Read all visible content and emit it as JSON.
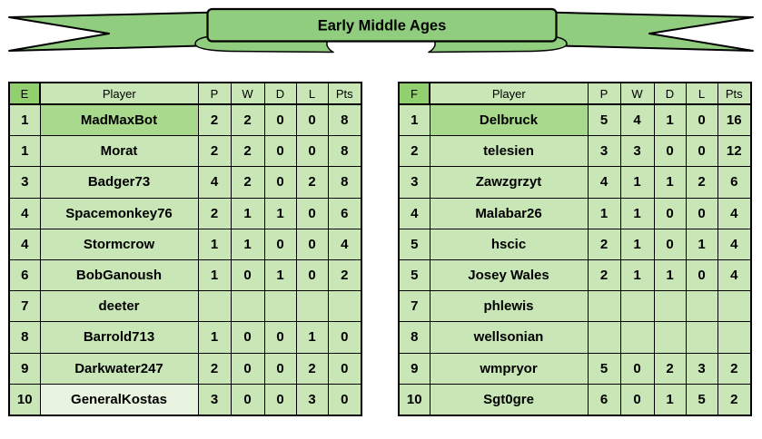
{
  "banner": {
    "title": "Early Middle Ages"
  },
  "colors": {
    "cell_green": "#c9e7b6",
    "corner_green": "#92d06f",
    "leader_highlight_green": "#a9d98c",
    "pale_highlight_green": "#e9f4e0",
    "ribbon_green": "#90cd7e",
    "border_black": "#000000"
  },
  "tables": [
    {
      "group_label": "E",
      "columns": [
        "Player",
        "P",
        "W",
        "D",
        "L",
        "Pts"
      ],
      "rows": [
        {
          "rank": "1",
          "player": "MadMaxBot",
          "p": "2",
          "w": "2",
          "d": "0",
          "l": "0",
          "pts": "8",
          "highlight": "leader"
        },
        {
          "rank": "1",
          "player": "Morat",
          "p": "2",
          "w": "2",
          "d": "0",
          "l": "0",
          "pts": "8",
          "highlight": ""
        },
        {
          "rank": "3",
          "player": "Badger73",
          "p": "4",
          "w": "2",
          "d": "0",
          "l": "2",
          "pts": "8",
          "highlight": ""
        },
        {
          "rank": "4",
          "player": "Spacemonkey76",
          "p": "2",
          "w": "1",
          "d": "1",
          "l": "0",
          "pts": "6",
          "highlight": ""
        },
        {
          "rank": "4",
          "player": "Stormcrow",
          "p": "1",
          "w": "1",
          "d": "0",
          "l": "0",
          "pts": "4",
          "highlight": ""
        },
        {
          "rank": "6",
          "player": "BobGanoush",
          "p": "1",
          "w": "0",
          "d": "1",
          "l": "0",
          "pts": "2",
          "highlight": ""
        },
        {
          "rank": "7",
          "player": "deeter",
          "p": "",
          "w": "",
          "d": "",
          "l": "",
          "pts": "",
          "highlight": ""
        },
        {
          "rank": "8",
          "player": "Barrold713",
          "p": "1",
          "w": "0",
          "d": "0",
          "l": "1",
          "pts": "0",
          "highlight": ""
        },
        {
          "rank": "9",
          "player": "Darkwater247",
          "p": "2",
          "w": "0",
          "d": "0",
          "l": "2",
          "pts": "0",
          "highlight": ""
        },
        {
          "rank": "10",
          "player": "GeneralKostas",
          "p": "3",
          "w": "0",
          "d": "0",
          "l": "3",
          "pts": "0",
          "highlight": "pale"
        }
      ]
    },
    {
      "group_label": "F",
      "columns": [
        "Player",
        "P",
        "W",
        "D",
        "L",
        "Pts"
      ],
      "rows": [
        {
          "rank": "1",
          "player": "Delbruck",
          "p": "5",
          "w": "4",
          "d": "1",
          "l": "0",
          "pts": "16",
          "highlight": "leader"
        },
        {
          "rank": "2",
          "player": "telesien",
          "p": "3",
          "w": "3",
          "d": "0",
          "l": "0",
          "pts": "12",
          "highlight": ""
        },
        {
          "rank": "3",
          "player": "Zawzgrzyt",
          "p": "4",
          "w": "1",
          "d": "1",
          "l": "2",
          "pts": "6",
          "highlight": ""
        },
        {
          "rank": "4",
          "player": "Malabar26",
          "p": "1",
          "w": "1",
          "d": "0",
          "l": "0",
          "pts": "4",
          "highlight": ""
        },
        {
          "rank": "5",
          "player": "hscic",
          "p": "2",
          "w": "1",
          "d": "0",
          "l": "1",
          "pts": "4",
          "highlight": ""
        },
        {
          "rank": "5",
          "player": "Josey Wales",
          "p": "2",
          "w": "1",
          "d": "1",
          "l": "0",
          "pts": "4",
          "highlight": ""
        },
        {
          "rank": "7",
          "player": "phlewis",
          "p": "",
          "w": "",
          "d": "",
          "l": "",
          "pts": "",
          "highlight": ""
        },
        {
          "rank": "8",
          "player": "wellsonian",
          "p": "",
          "w": "",
          "d": "",
          "l": "",
          "pts": "",
          "highlight": ""
        },
        {
          "rank": "9",
          "player": "wmpryor",
          "p": "5",
          "w": "0",
          "d": "2",
          "l": "3",
          "pts": "2",
          "highlight": ""
        },
        {
          "rank": "10",
          "player": "Sgt0gre",
          "p": "6",
          "w": "0",
          "d": "1",
          "l": "5",
          "pts": "2",
          "highlight": ""
        }
      ]
    }
  ],
  "chart_data": [
    {
      "type": "table",
      "title": "Early Middle Ages — Group E",
      "columns": [
        "E",
        "Player",
        "P",
        "W",
        "D",
        "L",
        "Pts"
      ],
      "rows": [
        [
          "1",
          "MadMaxBot",
          2,
          2,
          0,
          0,
          8
        ],
        [
          "1",
          "Morat",
          2,
          2,
          0,
          0,
          8
        ],
        [
          "3",
          "Badger73",
          4,
          2,
          0,
          2,
          8
        ],
        [
          "4",
          "Spacemonkey76",
          2,
          1,
          1,
          0,
          6
        ],
        [
          "4",
          "Stormcrow",
          1,
          1,
          0,
          0,
          4
        ],
        [
          "6",
          "BobGanoush",
          1,
          0,
          1,
          0,
          2
        ],
        [
          "7",
          "deeter",
          null,
          null,
          null,
          null,
          null
        ],
        [
          "8",
          "Barrold713",
          1,
          0,
          0,
          1,
          0
        ],
        [
          "9",
          "Darkwater247",
          2,
          0,
          0,
          2,
          0
        ],
        [
          "10",
          "GeneralKostas",
          3,
          0,
          0,
          3,
          0
        ]
      ]
    },
    {
      "type": "table",
      "title": "Early Middle Ages — Group F",
      "columns": [
        "F",
        "Player",
        "P",
        "W",
        "D",
        "L",
        "Pts"
      ],
      "rows": [
        [
          "1",
          "Delbruck",
          5,
          4,
          1,
          0,
          16
        ],
        [
          "2",
          "telesien",
          3,
          3,
          0,
          0,
          12
        ],
        [
          "3",
          "Zawzgrzyt",
          4,
          1,
          1,
          2,
          6
        ],
        [
          "4",
          "Malabar26",
          1,
          1,
          0,
          0,
          4
        ],
        [
          "5",
          "hscic",
          2,
          1,
          0,
          1,
          4
        ],
        [
          "5",
          "Josey Wales",
          2,
          1,
          1,
          0,
          4
        ],
        [
          "7",
          "phlewis",
          null,
          null,
          null,
          null,
          null
        ],
        [
          "8",
          "wellsonian",
          null,
          null,
          null,
          null,
          null
        ],
        [
          "9",
          "wmpryor",
          5,
          0,
          2,
          3,
          2
        ],
        [
          "10",
          "Sgt0gre",
          6,
          0,
          1,
          5,
          2
        ]
      ]
    }
  ]
}
